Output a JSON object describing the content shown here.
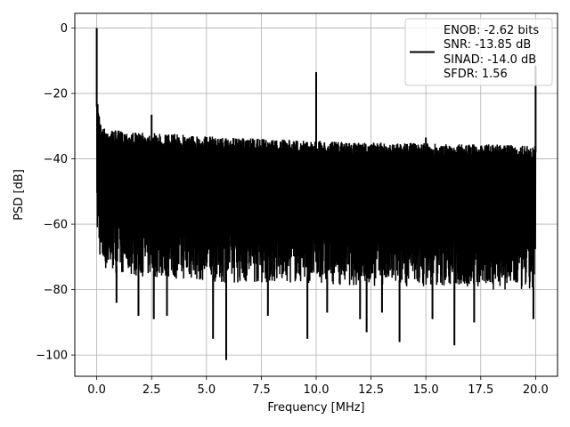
{
  "chart_data": {
    "type": "line",
    "title": "",
    "xlabel": "Frequency [MHz]",
    "ylabel": "PSD [dB]",
    "xlim": [
      -1.0,
      21.0
    ],
    "ylim": [
      -106.5,
      4.5
    ],
    "xticks": [
      0.0,
      2.5,
      5.0,
      7.5,
      10.0,
      12.5,
      15.0,
      17.5,
      20.0
    ],
    "xtick_labels": [
      "0.0",
      "2.5",
      "5.0",
      "7.5",
      "10.0",
      "12.5",
      "15.0",
      "17.5",
      "20.0"
    ],
    "yticks": [
      0,
      -20,
      -40,
      -60,
      -80,
      -100
    ],
    "ytick_labels": [
      "0",
      "−20",
      "−40",
      "−60",
      "−80",
      "−100"
    ],
    "grid": true,
    "color": "#000000",
    "series": [
      {
        "description": "noise floor band; peaks are the tops of the band, troughs the bottoms",
        "x_range": [
          0.0,
          20.0
        ],
        "upper_envelope": [
          [
            0.05,
            -22
          ],
          [
            0.2,
            -30
          ],
          [
            0.5,
            -31
          ],
          [
            2.0,
            -32
          ],
          [
            4.0,
            -32.5
          ],
          [
            6.0,
            -33.5
          ],
          [
            8.0,
            -34
          ],
          [
            10.0,
            -34.5
          ],
          [
            12.0,
            -35
          ],
          [
            14.0,
            -35
          ],
          [
            16.0,
            -35.5
          ],
          [
            18.0,
            -35.5
          ],
          [
            19.9,
            -36
          ]
        ],
        "lower_envelope": [
          [
            0.05,
            -64
          ],
          [
            0.2,
            -74
          ],
          [
            1.0,
            -75
          ],
          [
            2.0,
            -76
          ],
          [
            4.0,
            -77
          ],
          [
            6.0,
            -78
          ],
          [
            8.0,
            -78
          ],
          [
            10.0,
            -78
          ],
          [
            12.0,
            -79
          ],
          [
            14.0,
            -79
          ],
          [
            16.0,
            -79
          ],
          [
            18.0,
            -80
          ],
          [
            19.9,
            -81
          ]
        ],
        "spikes": [
          {
            "x": 0.0,
            "y": 0.0
          },
          {
            "x": 2.5,
            "y": -26.5
          },
          {
            "x": 10.0,
            "y": -13.5
          },
          {
            "x": 15.0,
            "y": -33.5
          },
          {
            "x": 20.0,
            "y": -11.5
          }
        ],
        "deep_dips": [
          {
            "x": 0.9,
            "y": -84
          },
          {
            "x": 1.9,
            "y": -88
          },
          {
            "x": 2.6,
            "y": -89
          },
          {
            "x": 3.2,
            "y": -88
          },
          {
            "x": 5.3,
            "y": -95
          },
          {
            "x": 5.9,
            "y": -101.5
          },
          {
            "x": 7.8,
            "y": -88
          },
          {
            "x": 9.6,
            "y": -95
          },
          {
            "x": 10.5,
            "y": -87
          },
          {
            "x": 12.0,
            "y": -89
          },
          {
            "x": 12.3,
            "y": -93
          },
          {
            "x": 13.0,
            "y": -87
          },
          {
            "x": 13.8,
            "y": -96
          },
          {
            "x": 15.3,
            "y": -89
          },
          {
            "x": 16.3,
            "y": -97
          },
          {
            "x": 17.2,
            "y": -90
          },
          {
            "x": 19.9,
            "y": -89
          }
        ]
      }
    ],
    "legend": {
      "placement": "top-right",
      "lines": [
        "ENOB: -2.62 bits",
        "SNR: -13.85 dB",
        "SINAD: -14.0 dB",
        "SFDR: 1.56"
      ]
    }
  }
}
